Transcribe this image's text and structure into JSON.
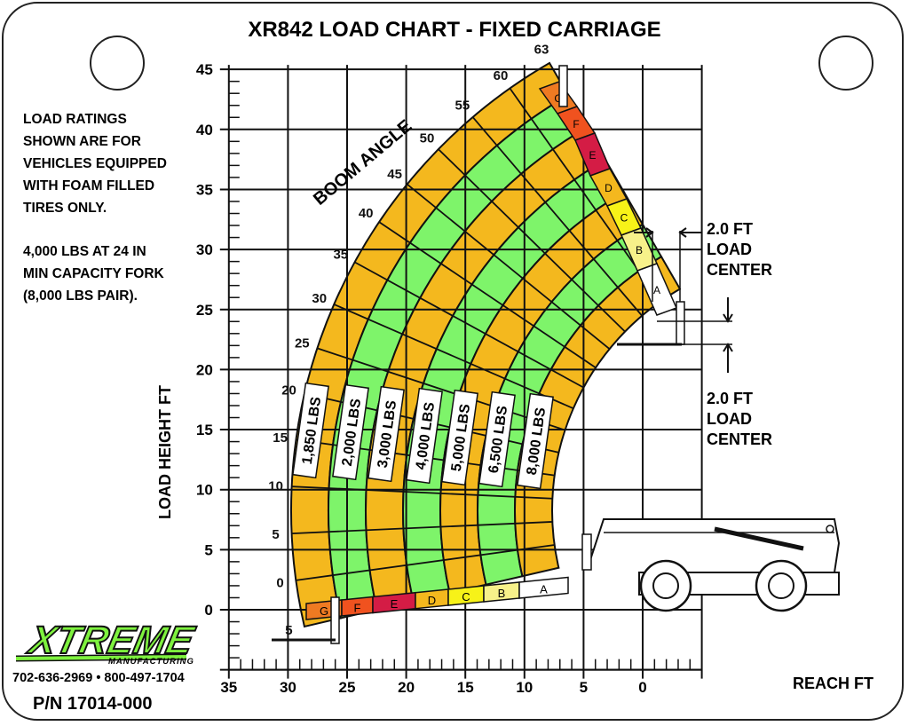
{
  "title": "XR842 LOAD CHART - FIXED CARRIAGE",
  "notes": [
    "LOAD RATINGS SHOWN ARE FOR VEHICLES EQUIPPED WITH FOAM FILLED TIRES ONLY.",
    "4,000 LBS AT 24 IN MIN CAPACITY FORK (8,000 LBS PAIR)."
  ],
  "notes_lines": [
    [
      "LOAD RATINGS",
      "SHOWN ARE FOR",
      "VEHICLES EQUIPPED",
      "WITH FOAM FILLED",
      "TIRES ONLY."
    ],
    [
      "4,000 LBS AT 24 IN",
      "MIN CAPACITY FORK",
      "(8,000 LBS PAIR)."
    ]
  ],
  "load_center_top": [
    "2.0 FT",
    "LOAD",
    "CENTER"
  ],
  "load_center_bottom": [
    "2.0 FT",
    "LOAD",
    "CENTER"
  ],
  "y_axis_label": "LOAD HEIGHT  FT",
  "x_axis_label": "REACH  FT",
  "y_ticks": [
    "45",
    "40",
    "35",
    "30",
    "25",
    "20",
    "15",
    "10",
    "5",
    "0"
  ],
  "x_ticks": [
    "35",
    "30",
    "25",
    "20",
    "15",
    "10",
    "5",
    "0"
  ],
  "boom_angle_label": "BOOM ANGLE",
  "boom_angles": [
    "63",
    "60",
    "55",
    "50",
    "45",
    "40",
    "35",
    "30",
    "25",
    "20",
    "15",
    "10",
    "5",
    "0",
    "5"
  ],
  "load_bands": [
    "1,850 LBS",
    "2,000 LBS",
    "3,000 LBS",
    "4,000 LBS",
    "5,000 LBS",
    "6,500 LBS",
    "8,000 LBS"
  ],
  "zones": [
    "G",
    "F",
    "E",
    "D",
    "C",
    "B",
    "A"
  ],
  "colors": {
    "orange": "#f4b81e",
    "green": "#7ef46a",
    "G": "#ef7a22",
    "F": "#f0521f",
    "E": "#d41c45",
    "D": "#f4b81e",
    "C": "#f7f218",
    "B": "#f7f18a",
    "A": "#ffffff",
    "logo": "#7ef23e"
  },
  "logo": {
    "name": "XTREME",
    "sub": "MANUFACTURING"
  },
  "phone": "702-636-2969 • 800-497-1704",
  "part_number": "P/N 17014-000"
}
